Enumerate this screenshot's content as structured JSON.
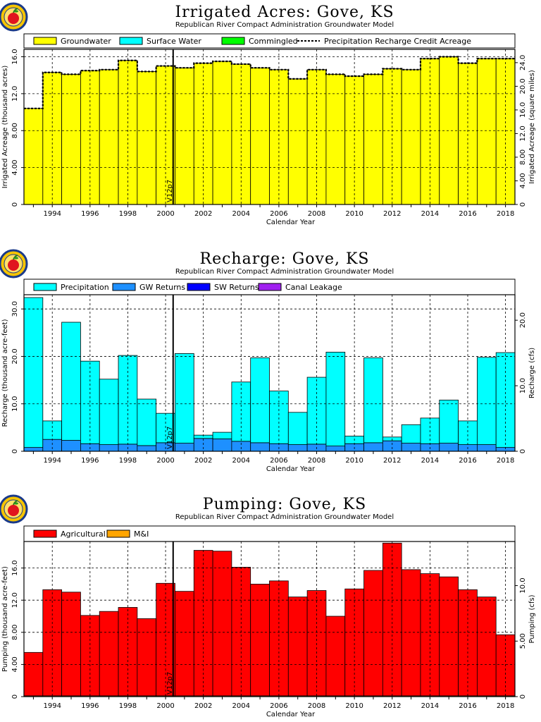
{
  "chart_data": [
    {
      "type": "bar",
      "title": "Irrigated Acres: Gove, KS",
      "subtitle": "Republican River Compact Administration Groundwater Model",
      "xlabel": "Calendar Year",
      "ylabel": "Irrigated Acreage (thousand acres)",
      "ylabel_right": "Irrigated Acreage (square miles)",
      "xlim": [
        1992.5,
        2018.5
      ],
      "ylim": [
        0,
        16.8
      ],
      "y_ticks": [
        0,
        4,
        8,
        12,
        16
      ],
      "y_tick_labels": [
        "0",
        "4.00",
        "8.00",
        "12.0",
        "16.0"
      ],
      "y2_ticks": [
        0,
        4,
        8,
        12,
        16,
        20,
        24
      ],
      "y2_tick_labels": [
        "0",
        "4.00",
        "8.00",
        "12.0",
        "16.0",
        "20.0",
        "24.0"
      ],
      "y2_scale": 1.5625,
      "x_ticks": [
        1994,
        1996,
        1998,
        2000,
        2002,
        2004,
        2006,
        2008,
        2010,
        2012,
        2014,
        2016,
        2018
      ],
      "grid": true,
      "legend_position": "top",
      "legend": [
        {
          "label": "Groundwater",
          "color": "#ffff00",
          "kind": "box"
        },
        {
          "label": "Surface Water",
          "color": "#00ffff",
          "kind": "box"
        },
        {
          "label": "Commingled",
          "color": "#00ff00",
          "kind": "box"
        },
        {
          "label": "Precipitation Recharge Credit Acreage",
          "color": "#000000",
          "kind": "dashed-line"
        }
      ],
      "marker_year": 2000.4,
      "marker_label": "V12p7",
      "years": [
        1993,
        1994,
        1995,
        1996,
        1997,
        1998,
        1999,
        2000,
        2001,
        2002,
        2003,
        2004,
        2005,
        2006,
        2007,
        2008,
        2009,
        2010,
        2011,
        2012,
        2013,
        2014,
        2015,
        2016,
        2017,
        2018
      ],
      "series": [
        {
          "name": "Groundwater",
          "color": "#ffff00",
          "values": [
            10.4,
            14.3,
            14.1,
            14.5,
            14.6,
            15.6,
            14.4,
            15.0,
            14.8,
            15.3,
            15.5,
            15.2,
            14.8,
            14.6,
            13.6,
            14.6,
            14.1,
            13.9,
            14.1,
            14.7,
            14.6,
            15.8,
            16.0,
            15.3,
            15.8,
            15.8
          ]
        },
        {
          "name": "Surface Water",
          "color": "#00ffff",
          "values": [
            0,
            0,
            0,
            0,
            0,
            0,
            0,
            0,
            0,
            0,
            0,
            0,
            0,
            0,
            0,
            0,
            0,
            0,
            0,
            0,
            0,
            0,
            0,
            0,
            0,
            0
          ]
        },
        {
          "name": "Commingled",
          "color": "#00ff00",
          "values": [
            0,
            0,
            0,
            0,
            0,
            0,
            0,
            0,
            0,
            0,
            0,
            0,
            0,
            0,
            0,
            0,
            0,
            0,
            0,
            0,
            0,
            0,
            0,
            0,
            0,
            0
          ]
        }
      ],
      "line_series": {
        "name": "Precipitation Recharge Credit Acreage",
        "values": [
          10.4,
          14.3,
          14.1,
          14.5,
          14.6,
          15.6,
          14.4,
          15.0,
          14.8,
          15.3,
          15.5,
          15.2,
          14.8,
          14.6,
          13.6,
          14.6,
          14.1,
          13.9,
          14.1,
          14.7,
          14.6,
          15.8,
          16.0,
          15.3,
          15.8,
          15.8
        ]
      }
    },
    {
      "type": "bar",
      "title": "Recharge: Gove, KS",
      "subtitle": "Republican River Compact Administration Groundwater Model",
      "xlabel": "Calendar Year",
      "ylabel": "Recharge (thousand acre-feet)",
      "ylabel_right": "Recharge (cfs)",
      "xlim": [
        1992.5,
        2018.5
      ],
      "ylim": [
        0,
        33
      ],
      "y_ticks": [
        0,
        10,
        20,
        30
      ],
      "y_tick_labels": [
        "0",
        "10.0",
        "20.0",
        "30.0"
      ],
      "y2_ticks": [
        0,
        10,
        20,
        30,
        40
      ],
      "y2_tick_labels": [
        "0",
        "10.0",
        "20.0",
        "30.0",
        "40.0"
      ],
      "y2_scale": 0.724,
      "x_ticks": [
        1994,
        1996,
        1998,
        2000,
        2002,
        2004,
        2006,
        2008,
        2010,
        2012,
        2014,
        2016,
        2018
      ],
      "grid": true,
      "legend_position": "top",
      "legend": [
        {
          "label": "Precipitation",
          "color": "#00ffff",
          "kind": "box"
        },
        {
          "label": "GW Returns",
          "color": "#1e90ff",
          "kind": "box"
        },
        {
          "label": "SW Returns",
          "color": "#0000ff",
          "kind": "box"
        },
        {
          "label": "Canal Leakage",
          "color": "#a020f0",
          "kind": "box"
        }
      ],
      "marker_year": 2000.4,
      "marker_label": "V12p7",
      "years": [
        1993,
        1994,
        1995,
        1996,
        1997,
        1998,
        1999,
        2000,
        2001,
        2002,
        2003,
        2004,
        2005,
        2006,
        2007,
        2008,
        2009,
        2010,
        2011,
        2012,
        2013,
        2014,
        2015,
        2016,
        2017,
        2018
      ],
      "series": [
        {
          "name": "GW Returns",
          "color": "#1e90ff",
          "values": [
            0.8,
            2.5,
            2.3,
            1.6,
            1.4,
            1.5,
            1.2,
            1.8,
            1.7,
            2.7,
            2.6,
            2.1,
            1.8,
            1.6,
            1.4,
            1.5,
            1.1,
            1.6,
            1.8,
            2.2,
            1.7,
            1.6,
            1.7,
            1.4,
            1.4,
            0.8
          ]
        },
        {
          "name": "SW Returns",
          "color": "#0000ff",
          "values": [
            0,
            0,
            0,
            0,
            0,
            0,
            0,
            0,
            0,
            0,
            0,
            0,
            0,
            0,
            0,
            0,
            0,
            0,
            0,
            0,
            0,
            0,
            0,
            0,
            0,
            0
          ]
        },
        {
          "name": "Canal Leakage",
          "color": "#a020f0",
          "values": [
            0,
            0,
            0,
            0,
            0,
            0,
            0,
            0,
            0,
            0,
            0,
            0,
            0,
            0,
            0,
            0,
            0,
            0,
            0,
            0,
            0,
            0,
            0,
            0,
            0,
            0
          ]
        },
        {
          "name": "Precipitation",
          "color": "#00ffff",
          "values": [
            31.6,
            3.9,
            24.9,
            17.4,
            13.8,
            18.7,
            9.8,
            6.2,
            18.9,
            0.7,
            1.4,
            12.5,
            17.9,
            11.1,
            6.8,
            14.1,
            19.8,
            1.6,
            17.9,
            0.8,
            3.9,
            5.4,
            9.1,
            5.0,
            18.4,
            20.0
          ]
        }
      ]
    },
    {
      "type": "bar",
      "title": "Pumping: Gove, KS",
      "subtitle": "Republican River Compact Administration Groundwater Model",
      "xlabel": "Calendar Year",
      "ylabel": "Pumping (thousand acre-feet)",
      "ylabel_right": "Pumping (cfs)",
      "xlim": [
        1992.5,
        2018.5
      ],
      "ylim": [
        0,
        19.3
      ],
      "y_ticks": [
        0,
        4,
        8,
        12,
        16
      ],
      "y_tick_labels": [
        "0",
        "4.00",
        "8.00",
        "12.0",
        "16.0"
      ],
      "y2_ticks": [
        0,
        5,
        10,
        15,
        20,
        25
      ],
      "y2_tick_labels": [
        "0",
        "5.00",
        "10.0",
        "15.0",
        "20.0",
        "25.0"
      ],
      "y2_scale": 0.724,
      "x_ticks": [
        1994,
        1996,
        1998,
        2000,
        2002,
        2004,
        2006,
        2008,
        2010,
        2012,
        2014,
        2016,
        2018
      ],
      "grid": true,
      "legend_position": "top",
      "legend": [
        {
          "label": "Agricultural",
          "color": "#ff0000",
          "kind": "box"
        },
        {
          "label": "M&I",
          "color": "#ffa500",
          "kind": "box"
        }
      ],
      "marker_year": 2000.4,
      "marker_label": "V12p7",
      "years": [
        1993,
        1994,
        1995,
        1996,
        1997,
        1998,
        1999,
        2000,
        2001,
        2002,
        2003,
        2004,
        2005,
        2006,
        2007,
        2008,
        2009,
        2010,
        2011,
        2012,
        2013,
        2014,
        2015,
        2016,
        2017,
        2018
      ],
      "series": [
        {
          "name": "M&I",
          "color": "#ffa500",
          "values": [
            0.1,
            0.1,
            0.1,
            0.1,
            0.1,
            0.1,
            0.1,
            0.1,
            0.1,
            0.1,
            0.1,
            0.1,
            0.1,
            0.1,
            0.1,
            0.1,
            0.1,
            0.1,
            0.1,
            0.1,
            0.1,
            0.1,
            0.1,
            0.1,
            0.1,
            0.1
          ]
        },
        {
          "name": "Agricultural",
          "color": "#ff0000",
          "values": [
            5.4,
            13.2,
            12.9,
            10.0,
            10.5,
            11.0,
            9.6,
            14.0,
            13.0,
            18.1,
            18.0,
            16.0,
            13.9,
            14.3,
            12.3,
            13.1,
            9.9,
            13.3,
            15.6,
            19.0,
            15.7,
            15.2,
            14.8,
            13.2,
            12.3,
            7.6
          ]
        }
      ]
    }
  ]
}
